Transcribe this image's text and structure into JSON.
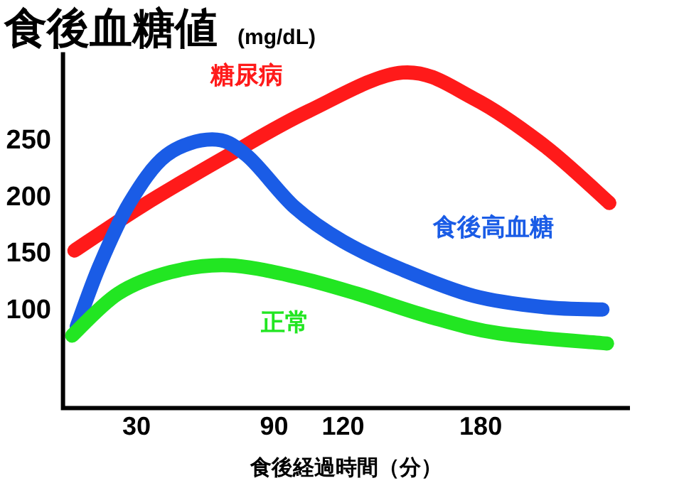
{
  "chart_data": {
    "type": "line",
    "title": "食後血糖値",
    "ylabel": "(mg/dL)",
    "xlabel": "食後経過時間（分）",
    "xlim": [
      -2,
      245
    ],
    "ylim": [
      12,
      326
    ],
    "xticks": [
      30,
      90,
      120,
      180
    ],
    "yticks": [
      100,
      150,
      200,
      250
    ],
    "series": [
      {
        "name": "糖尿病",
        "color": "#ff1a1a",
        "x": [
          3,
          33,
          70,
          105,
          146,
          177,
          208,
          236
        ],
        "values": [
          151,
          191,
          235,
          274,
          308,
          285,
          243,
          193
        ]
      },
      {
        "name": "食後高血糖",
        "color": "#1a5ce6",
        "x": [
          4,
          14,
          27,
          43,
          63,
          78,
          99,
          120,
          146,
          177,
          208,
          233
        ],
        "values": [
          84,
          138,
          193,
          235,
          249,
          235,
          189,
          159,
          134,
          111,
          101,
          99
        ]
      },
      {
        "name": "正常",
        "color": "#22e622",
        "x": [
          2,
          22,
          45,
          70,
          99,
          126,
          157,
          188,
          235
        ],
        "values": [
          76,
          113,
          132,
          138,
          128,
          113,
          93,
          78,
          69
        ]
      }
    ]
  }
}
